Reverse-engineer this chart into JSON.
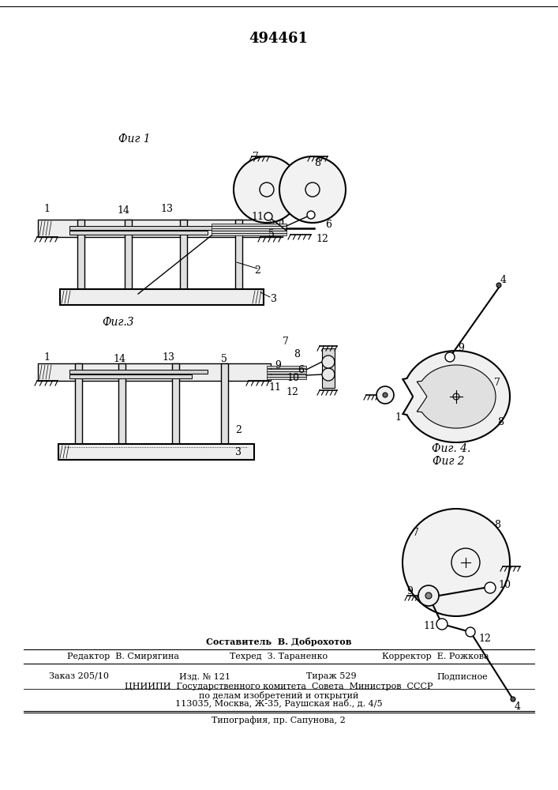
{
  "title": "494461",
  "bg_color": "#ffffff",
  "line_color": "#000000",
  "fig1_label": "Фиг 1",
  "fig2_label": "Фиг 2",
  "fig3_label": "Фиг.3",
  "fig4_label": "Фиг. 4.",
  "footer_line1_left": "Редактор  В. Смирягина",
  "footer_line1_center": "Техред  З. Тараненко",
  "footer_line1_right": "Корректор  Е. Рожкова",
  "footer_composer": "Составитель  В. Доброхотов",
  "footer_order": "Заказ 205/10",
  "footer_izd": "Изд. № 121",
  "footer_tirazh": "Тираж 529",
  "footer_podp": "Подписное",
  "footer_org": "ЦНИИПИ  Государственного комитета  Совета  Министров  СССР",
  "footer_dela": "по делам изобретений и открытий",
  "footer_addr": "113035, Москва, Ж-35, Раушская наб., д. 4/5",
  "footer_tipo": "Типография, пр. Сапунова, 2"
}
